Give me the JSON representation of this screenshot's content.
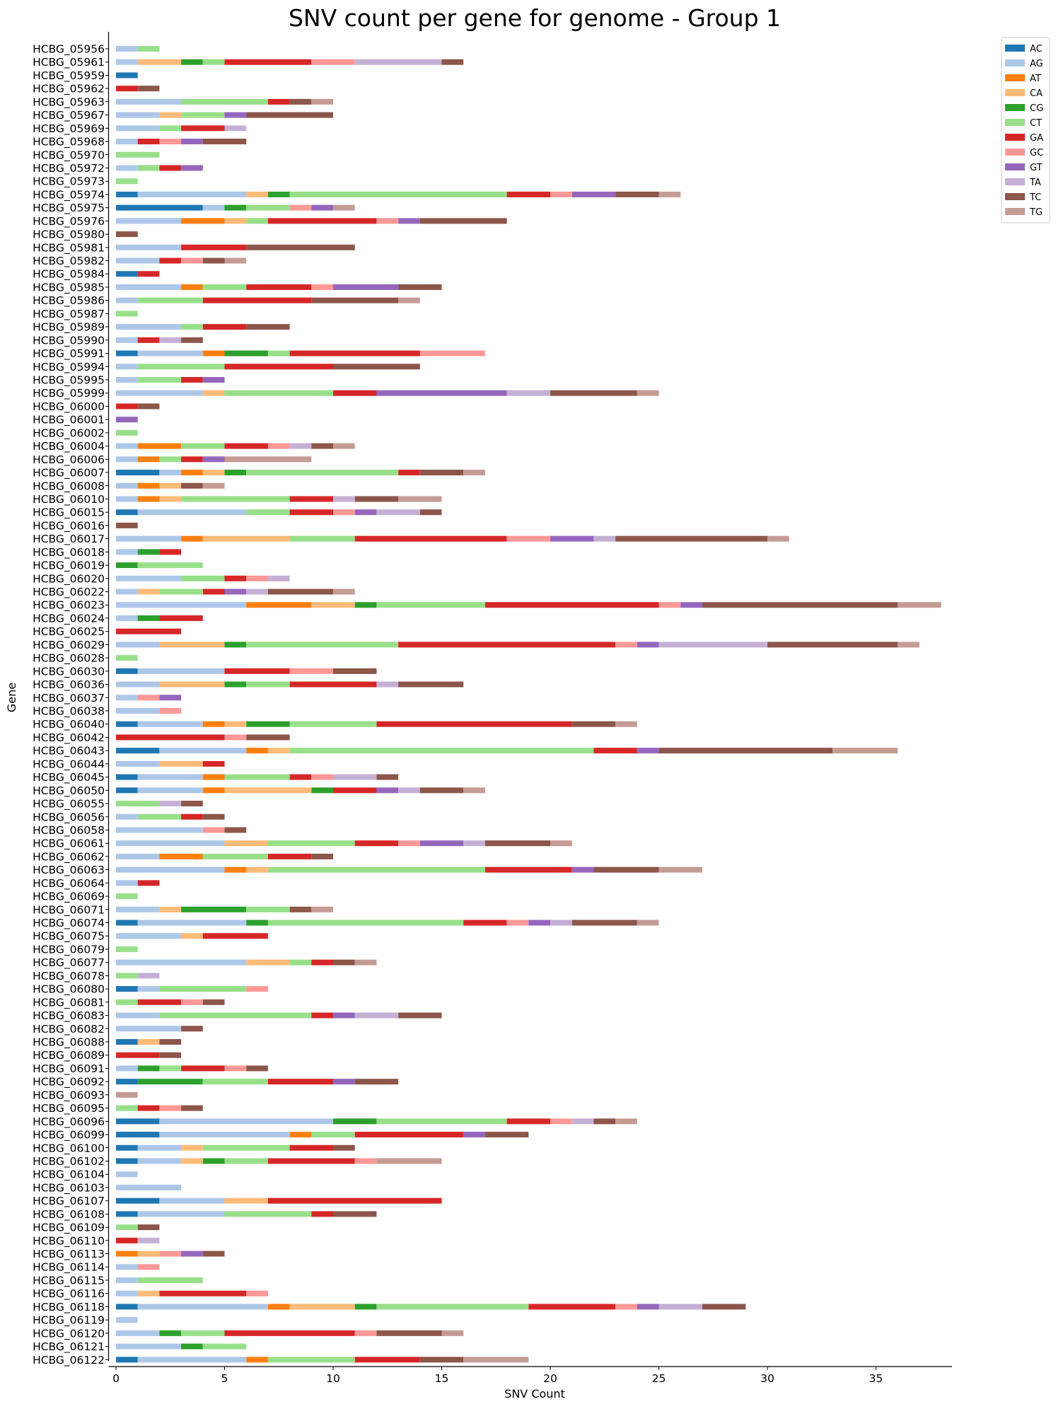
{
  "chart_data": {
    "type": "bar",
    "orientation": "horizontal",
    "stacked": true,
    "title": "SNV count per gene for genome - Group 1",
    "xlabel": "SNV Count",
    "ylabel": "Gene",
    "xlim": [
      0,
      38.5
    ],
    "xticks": [
      0,
      5,
      10,
      15,
      20,
      25,
      30,
      35
    ],
    "grid": false,
    "legend_position": "top-right",
    "series_order": [
      "AC",
      "AG",
      "AT",
      "CA",
      "CG",
      "CT",
      "GA",
      "GC",
      "GT",
      "TA",
      "TC",
      "TG"
    ],
    "colors": {
      "AC": "#1f77b4",
      "AG": "#aec7e8",
      "AT": "#ff7f0e",
      "CA": "#ffbb78",
      "CG": "#2ca02c",
      "CT": "#98df8a",
      "GA": "#d62728",
      "GC": "#ff9896",
      "GT": "#9467bd",
      "TA": "#c5b0d5",
      "TC": "#8c564b",
      "TG": "#c49c94"
    },
    "genes": [
      {
        "name": "HCBG_05956",
        "counts": {
          "AG": 1,
          "CT": 1
        }
      },
      {
        "name": "HCBG_05961",
        "counts": {
          "AG": 1,
          "CA": 2,
          "CG": 1,
          "CT": 1,
          "GA": 4,
          "GC": 2,
          "TA": 4,
          "TC": 1
        }
      },
      {
        "name": "HCBG_05959",
        "counts": {
          "AC": 1
        }
      },
      {
        "name": "HCBG_05962",
        "counts": {
          "GA": 1,
          "TC": 1
        }
      },
      {
        "name": "HCBG_05963",
        "counts": {
          "AG": 3,
          "CT": 4,
          "GA": 1,
          "TC": 1,
          "TG": 1
        }
      },
      {
        "name": "HCBG_05967",
        "counts": {
          "AG": 2,
          "CA": 1,
          "CT": 2,
          "GT": 1,
          "TC": 4
        }
      },
      {
        "name": "HCBG_05969",
        "counts": {
          "AG": 2,
          "CT": 1,
          "GA": 2,
          "TA": 1
        }
      },
      {
        "name": "HCBG_05968",
        "counts": {
          "AG": 1,
          "GA": 1,
          "GC": 1,
          "GT": 1,
          "TC": 2
        }
      },
      {
        "name": "HCBG_05970",
        "counts": {
          "CT": 2
        }
      },
      {
        "name": "HCBG_05972",
        "counts": {
          "AG": 1,
          "CT": 1,
          "GA": 1,
          "GT": 1
        }
      },
      {
        "name": "HCBG_05973",
        "counts": {
          "CT": 1
        }
      },
      {
        "name": "HCBG_05974",
        "counts": {
          "AC": 1,
          "AG": 5,
          "CA": 1,
          "CG": 1,
          "CT": 10,
          "GA": 2,
          "GC": 1,
          "GT": 2,
          "TC": 2,
          "TG": 1
        }
      },
      {
        "name": "HCBG_05975",
        "counts": {
          "AC": 4,
          "AG": 1,
          "CG": 1,
          "CT": 2,
          "GC": 1,
          "GT": 1,
          "TG": 1
        }
      },
      {
        "name": "HCBG_05976",
        "counts": {
          "AG": 3,
          "AT": 2,
          "CA": 1,
          "CT": 1,
          "GA": 5,
          "GC": 1,
          "GT": 1,
          "TC": 4
        }
      },
      {
        "name": "HCBG_05980",
        "counts": {
          "TC": 1
        }
      },
      {
        "name": "HCBG_05981",
        "counts": {
          "AG": 3,
          "GA": 3,
          "TC": 5
        }
      },
      {
        "name": "HCBG_05982",
        "counts": {
          "AG": 2,
          "GA": 1,
          "GC": 1,
          "TC": 1,
          "TG": 1
        }
      },
      {
        "name": "HCBG_05984",
        "counts": {
          "AC": 1,
          "GA": 1
        }
      },
      {
        "name": "HCBG_05985",
        "counts": {
          "AG": 3,
          "AT": 1,
          "CT": 2,
          "GA": 3,
          "GC": 1,
          "GT": 3,
          "TC": 2
        }
      },
      {
        "name": "HCBG_05986",
        "counts": {
          "AG": 1,
          "CT": 3,
          "GA": 5,
          "TC": 4,
          "TG": 1
        }
      },
      {
        "name": "HCBG_05987",
        "counts": {
          "CT": 1
        }
      },
      {
        "name": "HCBG_05989",
        "counts": {
          "AG": 3,
          "CT": 1,
          "GA": 2,
          "TC": 2
        }
      },
      {
        "name": "HCBG_05990",
        "counts": {
          "AG": 1,
          "GA": 1,
          "TA": 1,
          "TC": 1
        }
      },
      {
        "name": "HCBG_05991",
        "counts": {
          "AC": 1,
          "AG": 3,
          "AT": 1,
          "CG": 2,
          "CT": 1,
          "GA": 6,
          "GC": 3
        }
      },
      {
        "name": "HCBG_05994",
        "counts": {
          "AG": 1,
          "CT": 4,
          "GA": 5,
          "TC": 4
        }
      },
      {
        "name": "HCBG_05995",
        "counts": {
          "AG": 1,
          "CT": 2,
          "GA": 1,
          "GT": 1
        }
      },
      {
        "name": "HCBG_05999",
        "counts": {
          "AG": 4,
          "CA": 1,
          "CT": 5,
          "GA": 2,
          "GT": 6,
          "TA": 2,
          "TC": 4,
          "TG": 1
        }
      },
      {
        "name": "HCBG_06000",
        "counts": {
          "GA": 1,
          "TC": 1
        }
      },
      {
        "name": "HCBG_06001",
        "counts": {
          "GT": 1
        }
      },
      {
        "name": "HCBG_06002",
        "counts": {
          "CT": 1
        }
      },
      {
        "name": "HCBG_06004",
        "counts": {
          "AG": 1,
          "AT": 2,
          "CT": 2,
          "GA": 2,
          "GC": 1,
          "TA": 1,
          "TC": 1,
          "TG": 1
        }
      },
      {
        "name": "HCBG_06006",
        "counts": {
          "AG": 1,
          "AT": 1,
          "CT": 1,
          "GA": 1,
          "GT": 1,
          "TG": 4
        }
      },
      {
        "name": "HCBG_06007",
        "counts": {
          "AC": 2,
          "AG": 1,
          "AT": 1,
          "CA": 1,
          "CG": 1,
          "CT": 7,
          "GA": 1,
          "TC": 2,
          "TG": 1
        }
      },
      {
        "name": "HCBG_06008",
        "counts": {
          "AG": 1,
          "AT": 1,
          "CA": 1,
          "TC": 1,
          "TG": 1
        }
      },
      {
        "name": "HCBG_06010",
        "counts": {
          "AG": 1,
          "AT": 1,
          "CA": 1,
          "CT": 5,
          "GA": 2,
          "TA": 1,
          "TC": 2,
          "TG": 2
        }
      },
      {
        "name": "HCBG_06015",
        "counts": {
          "AC": 1,
          "AG": 5,
          "CT": 2,
          "GA": 2,
          "GC": 1,
          "GT": 1,
          "TA": 2,
          "TC": 1
        }
      },
      {
        "name": "HCBG_06016",
        "counts": {
          "TC": 1
        }
      },
      {
        "name": "HCBG_06017",
        "counts": {
          "AG": 3,
          "AT": 1,
          "CA": 4,
          "CT": 3,
          "GA": 7,
          "GC": 2,
          "GT": 2,
          "TA": 1,
          "TC": 7,
          "TG": 1
        }
      },
      {
        "name": "HCBG_06018",
        "counts": {
          "AG": 1,
          "CG": 1,
          "GA": 1
        }
      },
      {
        "name": "HCBG_06019",
        "counts": {
          "CG": 1,
          "CT": 3
        }
      },
      {
        "name": "HCBG_06020",
        "counts": {
          "AG": 3,
          "CT": 2,
          "GA": 1,
          "GC": 1,
          "TA": 1
        }
      },
      {
        "name": "HCBG_06022",
        "counts": {
          "AG": 1,
          "CA": 1,
          "CT": 2,
          "GA": 1,
          "GT": 1,
          "TA": 1,
          "TC": 3,
          "TG": 1
        }
      },
      {
        "name": "HCBG_06023",
        "counts": {
          "AG": 6,
          "AT": 3,
          "CA": 2,
          "CG": 1,
          "CT": 5,
          "GA": 8,
          "GC": 1,
          "GT": 1,
          "TC": 9,
          "TG": 2
        }
      },
      {
        "name": "HCBG_06024",
        "counts": {
          "AG": 1,
          "CG": 1,
          "GA": 2
        }
      },
      {
        "name": "HCBG_06025",
        "counts": {
          "GA": 3
        }
      },
      {
        "name": "HCBG_06029",
        "counts": {
          "AG": 2,
          "CA": 3,
          "CG": 1,
          "CT": 7,
          "GA": 10,
          "GC": 1,
          "GT": 1,
          "TA": 5,
          "TC": 6,
          "TG": 1
        }
      },
      {
        "name": "HCBG_06028",
        "counts": {
          "CT": 1
        }
      },
      {
        "name": "HCBG_06030",
        "counts": {
          "AC": 1,
          "AG": 4,
          "GA": 3,
          "GC": 2,
          "TC": 2
        }
      },
      {
        "name": "HCBG_06036",
        "counts": {
          "AG": 2,
          "CA": 3,
          "CG": 1,
          "CT": 2,
          "GA": 4,
          "TA": 1,
          "TC": 3
        }
      },
      {
        "name": "HCBG_06037",
        "counts": {
          "AG": 1,
          "GC": 1,
          "GT": 1
        }
      },
      {
        "name": "HCBG_06038",
        "counts": {
          "AG": 2,
          "GC": 1
        }
      },
      {
        "name": "HCBG_06040",
        "counts": {
          "AC": 1,
          "AG": 3,
          "AT": 1,
          "CA": 1,
          "CG": 2,
          "CT": 4,
          "GA": 9,
          "TC": 2,
          "TG": 1
        }
      },
      {
        "name": "HCBG_06042",
        "counts": {
          "GA": 5,
          "GC": 1,
          "TC": 2
        }
      },
      {
        "name": "HCBG_06043",
        "counts": {
          "AC": 2,
          "AG": 4,
          "AT": 1,
          "CA": 1,
          "CT": 14,
          "GA": 2,
          "GT": 1,
          "TC": 8,
          "TG": 3
        }
      },
      {
        "name": "HCBG_06044",
        "counts": {
          "AG": 2,
          "CA": 2,
          "GA": 1
        }
      },
      {
        "name": "HCBG_06045",
        "counts": {
          "AC": 1,
          "AG": 3,
          "AT": 1,
          "CT": 3,
          "GA": 1,
          "GC": 1,
          "TA": 2,
          "TC": 1
        }
      },
      {
        "name": "HCBG_06050",
        "counts": {
          "AC": 1,
          "AG": 3,
          "AT": 1,
          "CA": 4,
          "CG": 1,
          "GA": 2,
          "GT": 1,
          "TA": 1,
          "TC": 2,
          "TG": 1
        }
      },
      {
        "name": "HCBG_06055",
        "counts": {
          "CT": 2,
          "TA": 1,
          "TC": 1
        }
      },
      {
        "name": "HCBG_06056",
        "counts": {
          "AG": 1,
          "CT": 2,
          "GA": 1,
          "TC": 1
        }
      },
      {
        "name": "HCBG_06058",
        "counts": {
          "AG": 4,
          "GC": 1,
          "TC": 1
        }
      },
      {
        "name": "HCBG_06061",
        "counts": {
          "AG": 5,
          "CA": 2,
          "CT": 4,
          "GA": 2,
          "GC": 1,
          "GT": 2,
          "TA": 1,
          "TC": 3,
          "TG": 1
        }
      },
      {
        "name": "HCBG_06062",
        "counts": {
          "AG": 2,
          "AT": 2,
          "CT": 3,
          "GA": 2,
          "TC": 1
        }
      },
      {
        "name": "HCBG_06063",
        "counts": {
          "AG": 5,
          "AT": 1,
          "CA": 1,
          "CT": 10,
          "GA": 4,
          "GT": 1,
          "TC": 3,
          "TG": 2
        }
      },
      {
        "name": "HCBG_06064",
        "counts": {
          "AG": 1,
          "GA": 1
        }
      },
      {
        "name": "HCBG_06069",
        "counts": {
          "CT": 1
        }
      },
      {
        "name": "HCBG_06071",
        "counts": {
          "AG": 2,
          "CA": 1,
          "CG": 3,
          "CT": 2,
          "TC": 1,
          "TG": 1
        }
      },
      {
        "name": "HCBG_06074",
        "counts": {
          "AC": 1,
          "AG": 5,
          "CG": 1,
          "CT": 9,
          "GA": 2,
          "GC": 1,
          "GT": 1,
          "TA": 1,
          "TC": 3,
          "TG": 1
        }
      },
      {
        "name": "HCBG_06075",
        "counts": {
          "AG": 3,
          "CA": 1,
          "GA": 3
        }
      },
      {
        "name": "HCBG_06079",
        "counts": {
          "CT": 1
        }
      },
      {
        "name": "HCBG_06077",
        "counts": {
          "AG": 6,
          "CA": 2,
          "CT": 1,
          "GA": 1,
          "TC": 1,
          "TG": 1
        }
      },
      {
        "name": "HCBG_06078",
        "counts": {
          "CT": 1,
          "TA": 1
        }
      },
      {
        "name": "HCBG_06080",
        "counts": {
          "AC": 1,
          "AG": 1,
          "CT": 4,
          "GC": 1
        }
      },
      {
        "name": "HCBG_06081",
        "counts": {
          "CT": 1,
          "GA": 2,
          "GC": 1,
          "TC": 1
        }
      },
      {
        "name": "HCBG_06083",
        "counts": {
          "AG": 2,
          "CT": 7,
          "GA": 1,
          "GT": 1,
          "TA": 2,
          "TC": 2
        }
      },
      {
        "name": "HCBG_06082",
        "counts": {
          "AG": 3,
          "TC": 1
        }
      },
      {
        "name": "HCBG_06088",
        "counts": {
          "AC": 1,
          "CA": 1,
          "TC": 1
        }
      },
      {
        "name": "HCBG_06089",
        "counts": {
          "GA": 2,
          "TC": 1
        }
      },
      {
        "name": "HCBG_06091",
        "counts": {
          "AG": 1,
          "CG": 1,
          "CT": 1,
          "GA": 2,
          "GC": 1,
          "TC": 1
        }
      },
      {
        "name": "HCBG_06092",
        "counts": {
          "AC": 1,
          "CG": 3,
          "CT": 3,
          "GA": 3,
          "GT": 1,
          "TC": 2
        }
      },
      {
        "name": "HCBG_06093",
        "counts": {
          "TG": 1
        }
      },
      {
        "name": "HCBG_06095",
        "counts": {
          "CT": 1,
          "GA": 1,
          "GC": 1,
          "TC": 1
        }
      },
      {
        "name": "HCBG_06096",
        "counts": {
          "AC": 2,
          "AG": 8,
          "CG": 2,
          "CT": 6,
          "GA": 2,
          "GC": 1,
          "TA": 1,
          "TC": 1,
          "TG": 1
        }
      },
      {
        "name": "HCBG_06099",
        "counts": {
          "AC": 2,
          "AG": 6,
          "AT": 1,
          "CT": 2,
          "GA": 5,
          "GT": 1,
          "TC": 2
        }
      },
      {
        "name": "HCBG_06100",
        "counts": {
          "AC": 1,
          "AG": 2,
          "CA": 1,
          "CT": 4,
          "GA": 2,
          "TC": 1
        }
      },
      {
        "name": "HCBG_06102",
        "counts": {
          "AC": 1,
          "AG": 2,
          "CA": 1,
          "CG": 1,
          "CT": 2,
          "GA": 4,
          "GC": 1,
          "TG": 3
        }
      },
      {
        "name": "HCBG_06104",
        "counts": {
          "AG": 1
        }
      },
      {
        "name": "HCBG_06103",
        "counts": {
          "AG": 3
        }
      },
      {
        "name": "HCBG_06107",
        "counts": {
          "AC": 2,
          "AG": 3,
          "CA": 2,
          "GA": 8
        }
      },
      {
        "name": "HCBG_06108",
        "counts": {
          "AC": 1,
          "AG": 4,
          "CT": 4,
          "GA": 1,
          "TC": 2
        }
      },
      {
        "name": "HCBG_06109",
        "counts": {
          "CT": 1,
          "TC": 1
        }
      },
      {
        "name": "HCBG_06110",
        "counts": {
          "GA": 1,
          "TA": 1
        }
      },
      {
        "name": "HCBG_06113",
        "counts": {
          "AT": 1,
          "CA": 1,
          "GC": 1,
          "GT": 1,
          "TC": 1
        }
      },
      {
        "name": "HCBG_06114",
        "counts": {
          "AG": 1,
          "GC": 1
        }
      },
      {
        "name": "HCBG_06115",
        "counts": {
          "AG": 1,
          "CT": 3
        }
      },
      {
        "name": "HCBG_06116",
        "counts": {
          "AG": 1,
          "CA": 1,
          "GA": 4,
          "GC": 1
        }
      },
      {
        "name": "HCBG_06118",
        "counts": {
          "AC": 1,
          "AG": 6,
          "AT": 1,
          "CA": 3,
          "CG": 1,
          "CT": 7,
          "GA": 4,
          "GC": 1,
          "GT": 1,
          "TA": 2,
          "TC": 2
        }
      },
      {
        "name": "HCBG_06119",
        "counts": {
          "AG": 1
        }
      },
      {
        "name": "HCBG_06120",
        "counts": {
          "AG": 2,
          "CG": 1,
          "CT": 2,
          "GA": 6,
          "GC": 1,
          "TC": 3,
          "TG": 1
        }
      },
      {
        "name": "HCBG_06121",
        "counts": {
          "AG": 3,
          "CG": 1,
          "CT": 2
        }
      },
      {
        "name": "HCBG_06122",
        "counts": {
          "AC": 1,
          "AG": 5,
          "AT": 1,
          "CT": 4,
          "GA": 3,
          "TC": 2,
          "TG": 3
        }
      }
    ]
  }
}
